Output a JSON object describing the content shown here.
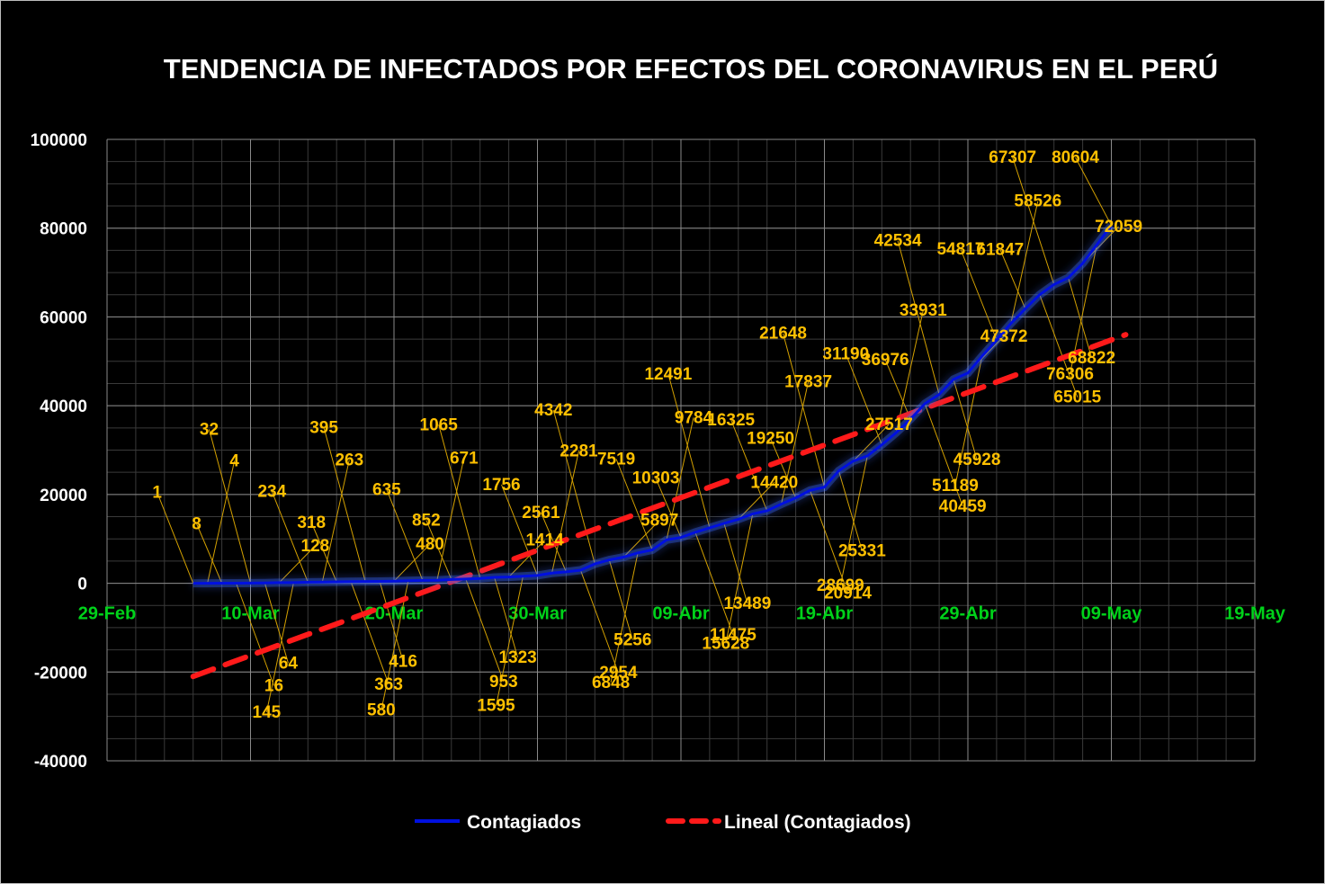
{
  "chart_data": {
    "type": "line",
    "title": "TENDENCIA DE INFECTADOS POR EFECTOS DEL CORONAVIRUS EN EL PERÚ",
    "xlabel": "",
    "ylabel": "",
    "ylim": [
      -40000,
      100000
    ],
    "y_ticks": [
      100000,
      80000,
      60000,
      40000,
      20000,
      0,
      -20000,
      -40000
    ],
    "x_ticks": [
      "29-Feb",
      "10-Mar",
      "20-Mar",
      "30-Mar",
      "09-Abr",
      "19-Abr",
      "29-Abr",
      "09-May",
      "19-May"
    ],
    "grid": true,
    "legend_position": "bottom",
    "series": [
      {
        "name": "Contagiados",
        "color": "#0010e0",
        "values": [
          1,
          4,
          8,
          16,
          32,
          64,
          128,
          145,
          234,
          263,
          318,
          363,
          395,
          416,
          480,
          580,
          635,
          671,
          852,
          953,
          1065,
          1323,
          1414,
          1595,
          1756,
          2281,
          2561,
          2954,
          4342,
          5256,
          5897,
          6848,
          7519,
          9784,
          10303,
          11475,
          12491,
          13489,
          14420,
          15628,
          16325,
          17837,
          19250,
          20914,
          21648,
          25331,
          27517,
          28699,
          31190,
          33931,
          36976,
          40459,
          42534,
          45928,
          47372,
          51189,
          54817,
          58526,
          61847,
          65015,
          67307,
          68822,
          72059,
          76306,
          80604
        ]
      },
      {
        "name": "Lineal (Contagiados)",
        "color": "#ff1a1a",
        "style": "dashed",
        "values": [
          -21000,
          56000
        ]
      }
    ]
  }
}
